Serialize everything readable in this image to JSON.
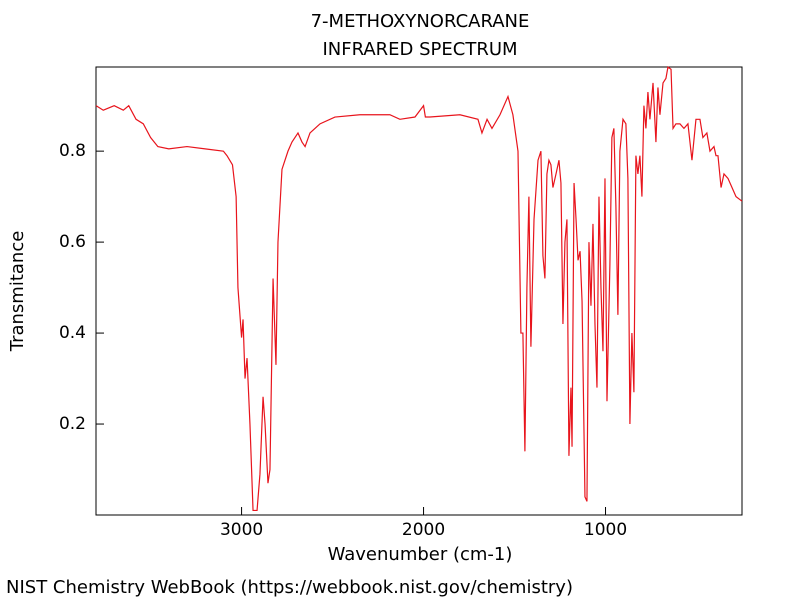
{
  "chart_data": {
    "type": "line",
    "title": "7-METHOXYNORCARANE",
    "subtitle": "INFRARED SPECTRUM",
    "x_label": "Wavenumber (cm-1)",
    "y_label": "Transmitance",
    "source": "NIST Chemistry WebBook (https://webbook.nist.gov/chemistry)",
    "color": "#e8141c",
    "xlim": [
      3800,
      250
    ],
    "xticks": [
      3000,
      2000,
      1000
    ],
    "ylim": [
      0,
      0.985
    ],
    "yticks": [
      0.2,
      0.4,
      0.6,
      0.8
    ],
    "x": [
      3800,
      3760,
      3700,
      3650,
      3620,
      3580,
      3540,
      3500,
      3460,
      3400,
      3300,
      3200,
      3100,
      3080,
      3050,
      3030,
      3020,
      3000,
      2992,
      2981,
      2970,
      2954,
      2937,
      2915,
      2899,
      2882,
      2871,
      2855,
      2844,
      2827,
      2811,
      2800,
      2778,
      2745,
      2723,
      2690,
      2668,
      2651,
      2624,
      2569,
      2487,
      2350,
      2185,
      2130,
      2047,
      2000,
      1990,
      1965,
      1800,
      1701,
      1679,
      1651,
      1624,
      1580,
      1536,
      1509,
      1481,
      1465,
      1454,
      1443,
      1432,
      1421,
      1410,
      1393,
      1371,
      1355,
      1344,
      1333,
      1322,
      1311,
      1300,
      1289,
      1272,
      1256,
      1245,
      1234,
      1223,
      1212,
      1201,
      1190,
      1184,
      1173,
      1162,
      1151,
      1140,
      1129,
      1113,
      1102,
      1091,
      1080,
      1069,
      1058,
      1047,
      1036,
      1025,
      1014,
      1003,
      992,
      976,
      965,
      954,
      943,
      932,
      921,
      904,
      888,
      877,
      866,
      855,
      844,
      833,
      822,
      811,
      800,
      789,
      778,
      767,
      756,
      739,
      723,
      712,
      701,
      684,
      668,
      657,
      640,
      629,
      613,
      591,
      569,
      547,
      525,
      503,
      481,
      465,
      443,
      426,
      404,
      393,
      382,
      365,
      349,
      327,
      305,
      283,
      250
    ],
    "values": [
      0.9,
      0.89,
      0.9,
      0.89,
      0.9,
      0.87,
      0.86,
      0.83,
      0.81,
      0.805,
      0.81,
      0.805,
      0.8,
      0.79,
      0.77,
      0.7,
      0.5,
      0.39,
      0.43,
      0.3,
      0.345,
      0.2,
      0.01,
      0.01,
      0.09,
      0.26,
      0.2,
      0.07,
      0.1,
      0.52,
      0.33,
      0.6,
      0.76,
      0.8,
      0.82,
      0.84,
      0.82,
      0.81,
      0.84,
      0.86,
      0.875,
      0.88,
      0.88,
      0.87,
      0.875,
      0.9,
      0.875,
      0.875,
      0.88,
      0.87,
      0.84,
      0.87,
      0.85,
      0.88,
      0.92,
      0.88,
      0.8,
      0.4,
      0.4,
      0.14,
      0.5,
      0.7,
      0.37,
      0.65,
      0.78,
      0.8,
      0.57,
      0.52,
      0.75,
      0.78,
      0.77,
      0.72,
      0.75,
      0.78,
      0.73,
      0.42,
      0.6,
      0.65,
      0.13,
      0.28,
      0.15,
      0.73,
      0.65,
      0.56,
      0.58,
      0.47,
      0.04,
      0.03,
      0.6,
      0.46,
      0.64,
      0.42,
      0.28,
      0.7,
      0.5,
      0.36,
      0.74,
      0.25,
      0.55,
      0.83,
      0.85,
      0.68,
      0.44,
      0.8,
      0.87,
      0.86,
      0.74,
      0.2,
      0.4,
      0.27,
      0.79,
      0.75,
      0.79,
      0.7,
      0.9,
      0.85,
      0.93,
      0.87,
      0.95,
      0.82,
      0.94,
      0.88,
      0.95,
      0.96,
      0.985,
      0.98,
      0.85,
      0.86,
      0.86,
      0.85,
      0.86,
      0.78,
      0.87,
      0.87,
      0.83,
      0.84,
      0.8,
      0.81,
      0.79,
      0.79,
      0.72,
      0.75,
      0.74,
      0.72,
      0.7,
      0.69
    ]
  }
}
